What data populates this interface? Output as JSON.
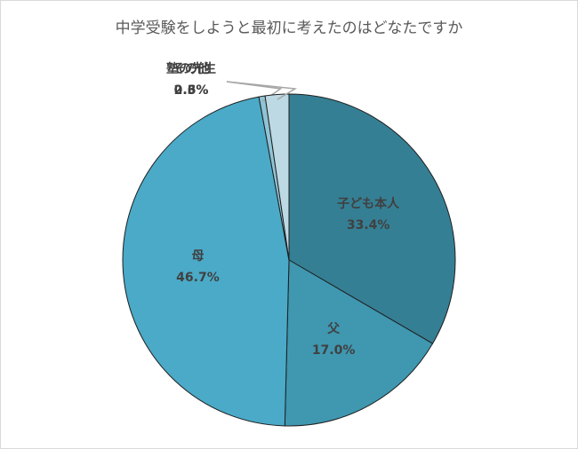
{
  "chart_data": {
    "type": "pie",
    "title": "中学受験をしようと最初に考えたのはどなたですか",
    "categories": [
      "子ども本人",
      "父",
      "母",
      "塾の先生",
      "その他"
    ],
    "values": [
      33.4,
      17.0,
      46.7,
      0.6,
      2.3
    ],
    "value_labels": [
      "33.4%",
      "17.0%",
      "46.7%",
      "0.6%",
      "2.3%"
    ],
    "colors": [
      "#357f94",
      "#3f97b0",
      "#4aaac8",
      "#8fc4d6",
      "#bcd9e4"
    ]
  }
}
